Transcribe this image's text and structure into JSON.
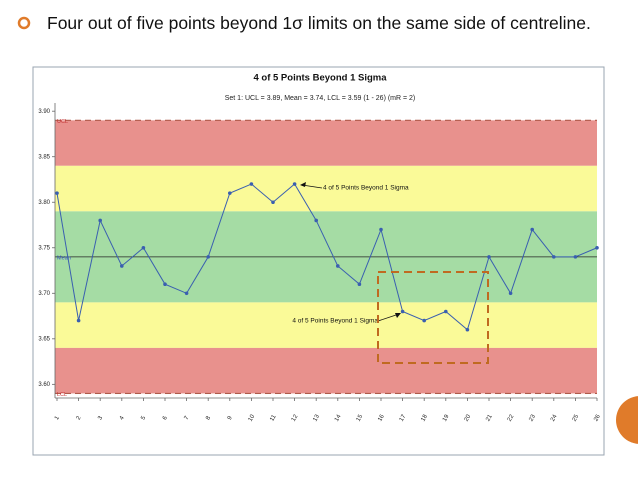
{
  "slide": {
    "bullet": "Four out of five points beyond 1σ limits on the same side of centreline."
  },
  "chart_data": {
    "type": "line",
    "title": "4 of 5 Points Beyond 1 Sigma",
    "subtitle": "Set 1: UCL = 3.89, Mean = 3.74, LCL = 3.59 (1 - 26) (mR = 2)",
    "categories": [
      "1",
      "2",
      "3",
      "4",
      "5",
      "6",
      "7",
      "8",
      "9",
      "10",
      "11",
      "12",
      "13",
      "14",
      "15",
      "16",
      "17",
      "18",
      "19",
      "20",
      "21",
      "22",
      "23",
      "24",
      "25",
      "26"
    ],
    "series": [
      {
        "name": "Set 1",
        "color": "#3a5fb0",
        "values": [
          3.81,
          3.67,
          3.78,
          3.73,
          3.75,
          3.71,
          3.7,
          3.74,
          3.81,
          3.82,
          3.8,
          3.82,
          3.78,
          3.73,
          3.71,
          3.77,
          3.68,
          3.67,
          3.68,
          3.66,
          3.74,
          3.7,
          3.77,
          3.74,
          3.74,
          3.75
        ]
      }
    ],
    "ylim": [
      3.585,
      3.909
    ],
    "yticks": [
      {
        "value": 3.6,
        "label": "3.60"
      },
      {
        "value": 3.65,
        "label": "3.65"
      },
      {
        "value": 3.7,
        "label": "3.70"
      },
      {
        "value": 3.75,
        "label": "3.75"
      },
      {
        "value": 3.8,
        "label": "3.80"
      },
      {
        "value": 3.85,
        "label": "3.85"
      },
      {
        "value": 3.9,
        "label": "3.90"
      }
    ],
    "zones": [
      {
        "from": 3.84,
        "to": 3.89,
        "color": "#e8918d"
      },
      {
        "from": 3.79,
        "to": 3.84,
        "color": "#fafa98"
      },
      {
        "from": 3.69,
        "to": 3.79,
        "color": "#a5dca4"
      },
      {
        "from": 3.64,
        "to": 3.69,
        "color": "#fafa98"
      },
      {
        "from": 3.59,
        "to": 3.64,
        "color": "#e8918d"
      }
    ],
    "limit_lines": [
      {
        "label": "UCL",
        "value": 3.89,
        "color": "#b05a4a",
        "dashed": true
      },
      {
        "label": "Mean",
        "value": 3.74,
        "color": "#222222",
        "dashed": false
      },
      {
        "label": "LCL",
        "value": 3.59,
        "color": "#b05a4a",
        "dashed": true
      }
    ],
    "annotations": [
      "4 of 5 Points Beyond 1 Sigma",
      "4 of 5 Points Beyond 1 Sigma"
    ]
  }
}
